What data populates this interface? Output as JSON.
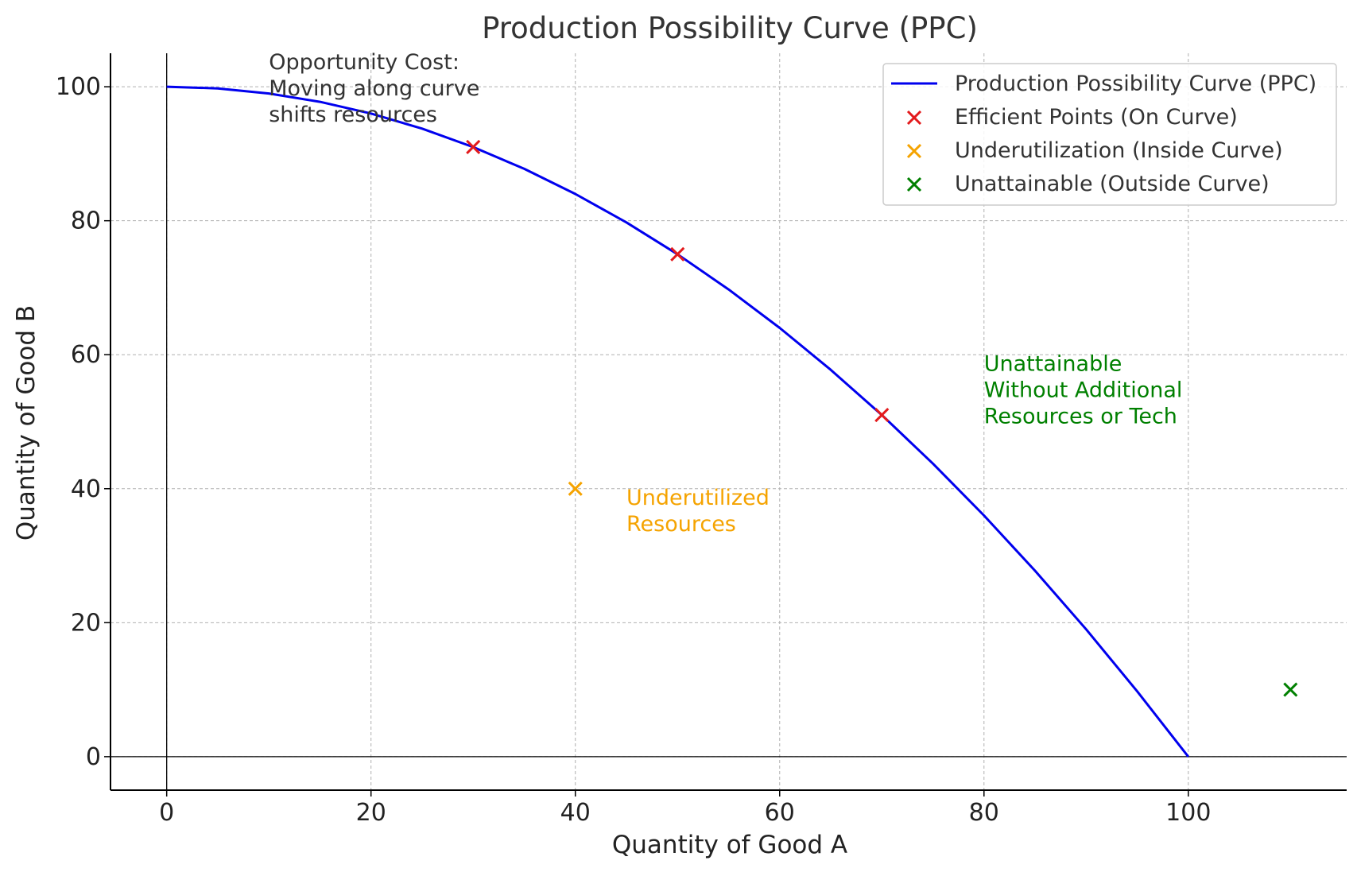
{
  "chart_data": {
    "type": "line",
    "title": "Production Possibility Curve (PPC)",
    "xlabel": "Quantity of Good A",
    "ylabel": "Quantity of Good B",
    "xlim": [
      -5.5,
      115.5
    ],
    "ylim": [
      -5,
      105
    ],
    "xticks": [
      0,
      20,
      40,
      60,
      80,
      100
    ],
    "yticks": [
      0,
      20,
      40,
      60,
      80,
      100
    ],
    "grid": true,
    "legend_position": "top-right",
    "curve": {
      "name": "Production Possibility Curve (PPC)",
      "color": "#0000ee",
      "formula": "y = 100 - x^2 / 100",
      "x": [
        0,
        5,
        10,
        15,
        20,
        25,
        30,
        35,
        40,
        45,
        50,
        55,
        60,
        65,
        70,
        75,
        80,
        85,
        90,
        95,
        100
      ],
      "y": [
        100,
        99.75,
        99,
        97.75,
        96,
        93.75,
        91,
        87.75,
        84,
        79.75,
        75,
        69.75,
        64,
        57.75,
        51,
        43.75,
        36,
        27.75,
        19,
        9.75,
        0
      ]
    },
    "point_series": [
      {
        "name": "Efficient Points (On Curve)",
        "color": "#e31a1c",
        "points": [
          [
            30,
            91
          ],
          [
            50,
            75
          ],
          [
            70,
            51
          ]
        ]
      },
      {
        "name": "Underutilization (Inside Curve)",
        "color": "#f5a300",
        "points": [
          [
            40,
            40
          ]
        ]
      },
      {
        "name": "Unattainable (Outside Curve)",
        "color": "#008000",
        "points": [
          [
            110,
            10
          ]
        ]
      }
    ],
    "annotations": [
      {
        "lines": [
          "Opportunity Cost:",
          "Moving along curve",
          "shifts resources"
        ],
        "x": 10,
        "y": 100,
        "color": "#333333"
      },
      {
        "lines": [
          "Underutilized",
          "Resources"
        ],
        "x": 45,
        "y": 35,
        "color": "#f5a300"
      },
      {
        "lines": [
          "Unattainable",
          "Without Additional",
          "Resources or Tech"
        ],
        "x": 80,
        "y": 55,
        "color": "#008000"
      }
    ]
  }
}
